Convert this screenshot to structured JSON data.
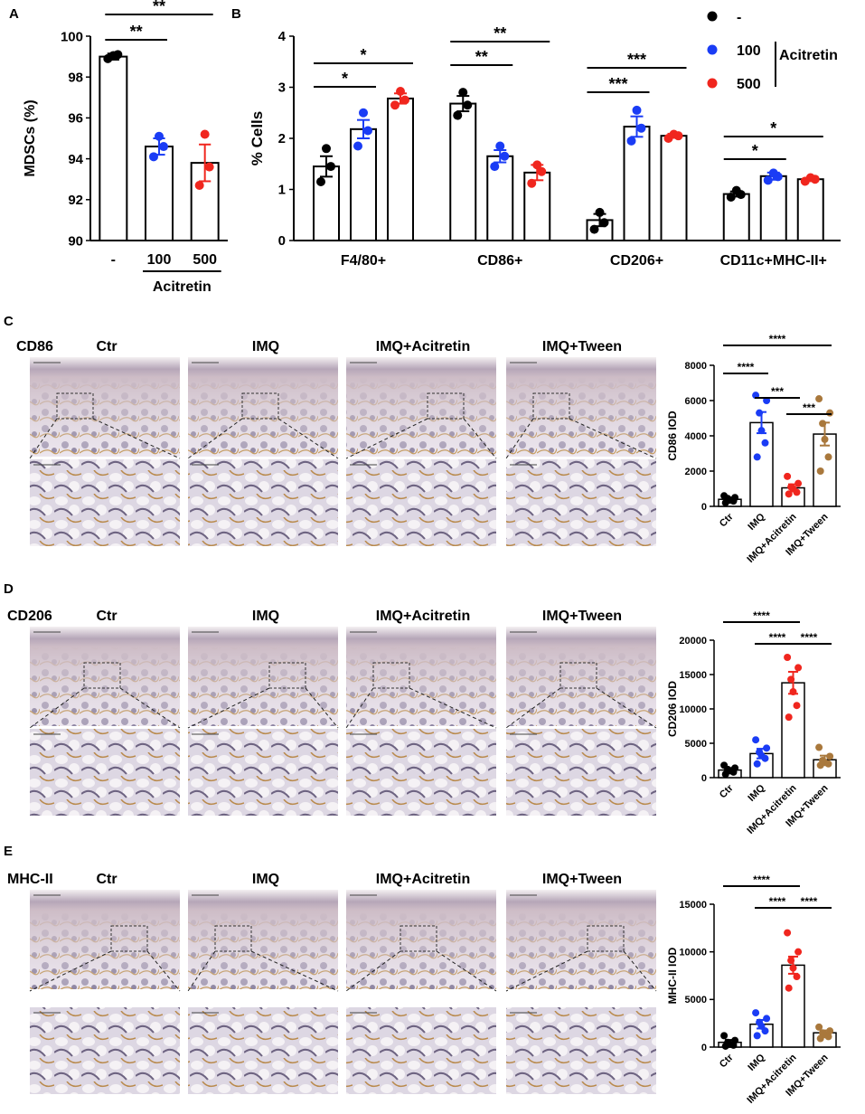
{
  "colors": {
    "ctrl": "#000000",
    "a100": "#1a3cf5",
    "a500": "#f0261e",
    "imq": "#1a3cf5",
    "acit": "#f0261e",
    "tween": "#a9783c"
  },
  "panels": {
    "A": "A",
    "B": "B",
    "C": "C",
    "D": "D",
    "E": "E"
  },
  "rows": {
    "C": {
      "marker": "CD86",
      "labels": [
        "Ctr",
        "IMQ",
        "IMQ+Acitretin",
        "IMQ+Tween"
      ]
    },
    "D": {
      "marker": "CD206",
      "labels": [
        "Ctr",
        "IMQ",
        "IMQ+Acitretin",
        "IMQ+Tween"
      ]
    },
    "E": {
      "marker": "MHC-II",
      "labels": [
        "Ctr",
        "IMQ",
        "IMQ+Acitretin",
        "IMQ+Tween"
      ]
    }
  },
  "chart_data": [
    {
      "id": "A",
      "type": "bar",
      "ylabel": "MDSCs (%)",
      "ylim": [
        90,
        100
      ],
      "yticks": [
        "90",
        "92",
        "94",
        "96",
        "98",
        "100"
      ],
      "categories": [
        "-",
        "100",
        "500"
      ],
      "group_label": "Acitretin",
      "values": [
        99.0,
        94.6,
        93.8
      ],
      "errors": [
        0.15,
        0.4,
        0.9
      ],
      "points": [
        [
          98.9,
          99.1,
          99.05
        ],
        [
          94.1,
          94.6,
          95.1
        ],
        [
          92.7,
          93.6,
          95.2
        ]
      ],
      "dot_colors": [
        "#000000",
        "#1a3cf5",
        "#f0261e"
      ],
      "significance": [
        {
          "from": 0,
          "to": 1,
          "label": "**"
        },
        {
          "from": 0,
          "to": 2,
          "label": "**"
        }
      ]
    },
    {
      "id": "B",
      "type": "bar",
      "ylabel": "% Cells",
      "ylim": [
        0,
        4
      ],
      "yticks": [
        "0",
        "1",
        "2",
        "3",
        "4"
      ],
      "categories": [
        "F4/80+",
        "CD86+",
        "CD206+",
        "CD11c+MHC-II+"
      ],
      "series": [
        {
          "name": "-",
          "values": [
            1.45,
            2.68,
            0.4,
            0.91
          ],
          "errors": [
            0.2,
            0.15,
            0.12,
            0.05
          ],
          "points": [
            [
              1.15,
              1.45,
              1.8
            ],
            [
              2.45,
              2.65,
              2.9
            ],
            [
              0.22,
              0.35,
              0.55
            ],
            [
              0.85,
              0.9,
              0.98
            ]
          ]
        },
        {
          "name": "100",
          "values": [
            2.18,
            1.65,
            2.23,
            1.26
          ],
          "errors": [
            0.18,
            0.12,
            0.2,
            0.07
          ],
          "points": [
            [
              1.85,
              2.15,
              2.5
            ],
            [
              1.45,
              1.65,
              1.85
            ],
            [
              1.95,
              2.2,
              2.55
            ],
            [
              1.18,
              1.25,
              1.32
            ]
          ]
        },
        {
          "name": "500",
          "values": [
            2.78,
            1.33,
            2.05,
            1.2
          ],
          "errors": [
            0.1,
            0.15,
            0.04,
            0.03
          ],
          "points": [
            [
              2.65,
              2.75,
              2.92
            ],
            [
              1.12,
              1.35,
              1.48
            ],
            [
              2.0,
              2.05,
              2.08
            ],
            [
              1.16,
              1.2,
              1.23
            ]
          ]
        }
      ],
      "legend": {
        "items": [
          "-",
          "100",
          "500"
        ],
        "group_label": "Acitretin"
      },
      "significance": [
        {
          "cat": 0,
          "from": 0,
          "to": 1,
          "label": "*"
        },
        {
          "cat": 0,
          "from": 0,
          "to": 2,
          "label": "*"
        },
        {
          "cat": 1,
          "from": 0,
          "to": 1,
          "label": "**"
        },
        {
          "cat": 1,
          "from": 0,
          "to": 2,
          "label": "**"
        },
        {
          "cat": 2,
          "from": 0,
          "to": 1,
          "label": "***"
        },
        {
          "cat": 2,
          "from": 0,
          "to": 2,
          "label": "***"
        },
        {
          "cat": 3,
          "from": 0,
          "to": 1,
          "label": "*"
        },
        {
          "cat": 3,
          "from": 0,
          "to": 2,
          "label": "*"
        }
      ]
    },
    {
      "id": "C",
      "type": "bar",
      "ylabel": "CD86 IOD",
      "ylim": [
        0,
        8000
      ],
      "yticks": [
        "0",
        "2000",
        "4000",
        "6000",
        "8000"
      ],
      "categories": [
        "Ctr",
        "IMQ",
        "IMQ+Acitretin",
        "IMQ+Tween"
      ],
      "values": [
        400,
        4750,
        1050,
        4100
      ],
      "errors": [
        100,
        600,
        200,
        650
      ],
      "points": [
        [
          200,
          300,
          350,
          450,
          500,
          600
        ],
        [
          2800,
          3600,
          4300,
          5300,
          6000,
          6300
        ],
        [
          700,
          800,
          1000,
          1100,
          1300,
          1700
        ],
        [
          2000,
          2800,
          3800,
          4700,
          5300,
          6100
        ]
      ],
      "dot_colors": [
        "#000000",
        "#1a3cf5",
        "#f0261e",
        "#a9783c"
      ],
      "significance": [
        {
          "from": 0,
          "to": 3,
          "label": "****"
        },
        {
          "from": 0,
          "to": 1,
          "label": "****"
        },
        {
          "from": 1,
          "to": 2,
          "label": "***"
        },
        {
          "from": 2,
          "to": 3,
          "label": "***"
        }
      ]
    },
    {
      "id": "D",
      "type": "bar",
      "ylabel": "CD206 IOD",
      "ylim": [
        0,
        20000
      ],
      "yticks": [
        "0",
        "5000",
        "10000",
        "15000",
        "20000"
      ],
      "categories": [
        "Ctr",
        "IMQ",
        "IMQ+Acitretin",
        "IMQ+Tween"
      ],
      "values": [
        1100,
        3500,
        13800,
        2600
      ],
      "errors": [
        300,
        700,
        1600,
        600
      ],
      "points": [
        [
          500,
          800,
          1000,
          1200,
          1400,
          1800
        ],
        [
          2000,
          2800,
          3200,
          3700,
          4300,
          5500
        ],
        [
          8800,
          10500,
          12500,
          14300,
          16000,
          17500
        ],
        [
          1800,
          2000,
          2200,
          2500,
          3100,
          4400
        ]
      ],
      "dot_colors": [
        "#000000",
        "#1a3cf5",
        "#f0261e",
        "#a9783c"
      ],
      "significance": [
        {
          "from": 0,
          "to": 2,
          "label": "****"
        },
        {
          "from": 1,
          "to": 2,
          "label": "****"
        },
        {
          "from": 2,
          "to": 3,
          "label": "****"
        }
      ]
    },
    {
      "id": "E",
      "type": "bar",
      "ylabel": "MHC-II IOD",
      "ylim": [
        0,
        15000
      ],
      "yticks": [
        "0",
        "5000",
        "10000",
        "15000"
      ],
      "categories": [
        "Ctr",
        "IMQ",
        "IMQ+Acitretin",
        "IMQ+Tween"
      ],
      "values": [
        500,
        2400,
        8600,
        1500
      ],
      "errors": [
        250,
        450,
        900,
        250
      ],
      "points": [
        [
          100,
          200,
          300,
          500,
          700,
          1200
        ],
        [
          1200,
          1700,
          2200,
          2600,
          3000,
          3600
        ],
        [
          6200,
          7400,
          8300,
          9100,
          10000,
          12000
        ],
        [
          900,
          1100,
          1300,
          1500,
          1700,
          2100
        ]
      ],
      "dot_colors": [
        "#000000",
        "#1a3cf5",
        "#f0261e",
        "#a9783c"
      ],
      "significance": [
        {
          "from": 0,
          "to": 2,
          "label": "****"
        },
        {
          "from": 1,
          "to": 2,
          "label": "****"
        },
        {
          "from": 2,
          "to": 3,
          "label": "****"
        }
      ]
    }
  ]
}
